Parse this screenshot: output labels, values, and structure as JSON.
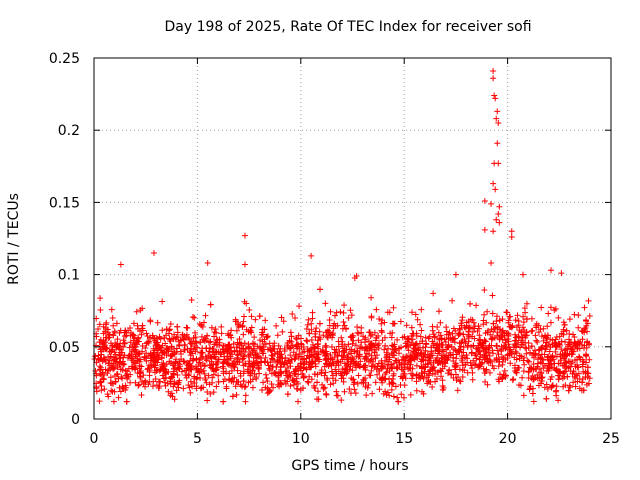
{
  "chart_data": {
    "type": "scatter",
    "title": "Day 198 of 2025, Rate Of TEC Index for receiver sofi",
    "xlabel": "GPS time / hours",
    "ylabel": "ROTI / TECUs",
    "xlim": [
      0,
      25
    ],
    "ylim": [
      0,
      0.25
    ],
    "x_ticks": [
      0,
      5,
      10,
      15,
      20,
      25
    ],
    "x_tick_labels": [
      "0",
      "5",
      "10",
      "15",
      "20",
      "25"
    ],
    "y_ticks": [
      0,
      0.05,
      0.1,
      0.15,
      0.2,
      0.25
    ],
    "y_tick_labels": [
      "0",
      "0.05",
      "0.1",
      "0.15",
      "0.2",
      "0.25"
    ],
    "grid": true,
    "marker": "+",
    "color": "#ff0000",
    "series_summary": {
      "name": "ROTI",
      "x_range": [
        0,
        24
      ],
      "baseline_min": 0.012,
      "baseline_typical": [
        0.02,
        0.06
      ],
      "baseline_max_typical": 0.1
    },
    "notable_points": [
      {
        "x": 7.3,
        "y": 0.127
      },
      {
        "x": 19.3,
        "y": 0.241
      },
      {
        "x": 19.3,
        "y": 0.236
      },
      {
        "x": 19.35,
        "y": 0.224
      },
      {
        "x": 19.4,
        "y": 0.222
      },
      {
        "x": 19.5,
        "y": 0.213
      },
      {
        "x": 19.45,
        "y": 0.208
      },
      {
        "x": 19.55,
        "y": 0.205
      },
      {
        "x": 19.5,
        "y": 0.191
      },
      {
        "x": 19.35,
        "y": 0.177
      },
      {
        "x": 19.55,
        "y": 0.177
      },
      {
        "x": 19.3,
        "y": 0.163
      },
      {
        "x": 19.4,
        "y": 0.159
      },
      {
        "x": 18.9,
        "y": 0.151
      },
      {
        "x": 19.2,
        "y": 0.149
      },
      {
        "x": 19.6,
        "y": 0.147
      },
      {
        "x": 19.55,
        "y": 0.142
      },
      {
        "x": 19.45,
        "y": 0.138
      },
      {
        "x": 19.6,
        "y": 0.136
      },
      {
        "x": 18.9,
        "y": 0.131
      },
      {
        "x": 19.3,
        "y": 0.13
      },
      {
        "x": 20.2,
        "y": 0.13
      },
      {
        "x": 20.2,
        "y": 0.126
      },
      {
        "x": 10.5,
        "y": 0.113
      },
      {
        "x": 2.9,
        "y": 0.115
      },
      {
        "x": 19.2,
        "y": 0.108
      },
      {
        "x": 5.5,
        "y": 0.108
      },
      {
        "x": 7.3,
        "y": 0.107
      },
      {
        "x": 1.3,
        "y": 0.107
      },
      {
        "x": 22.1,
        "y": 0.103
      },
      {
        "x": 22.6,
        "y": 0.101
      },
      {
        "x": 17.5,
        "y": 0.1
      },
      {
        "x": 16.4,
        "y": 0.087
      },
      {
        "x": 13.4,
        "y": 0.084
      }
    ]
  }
}
